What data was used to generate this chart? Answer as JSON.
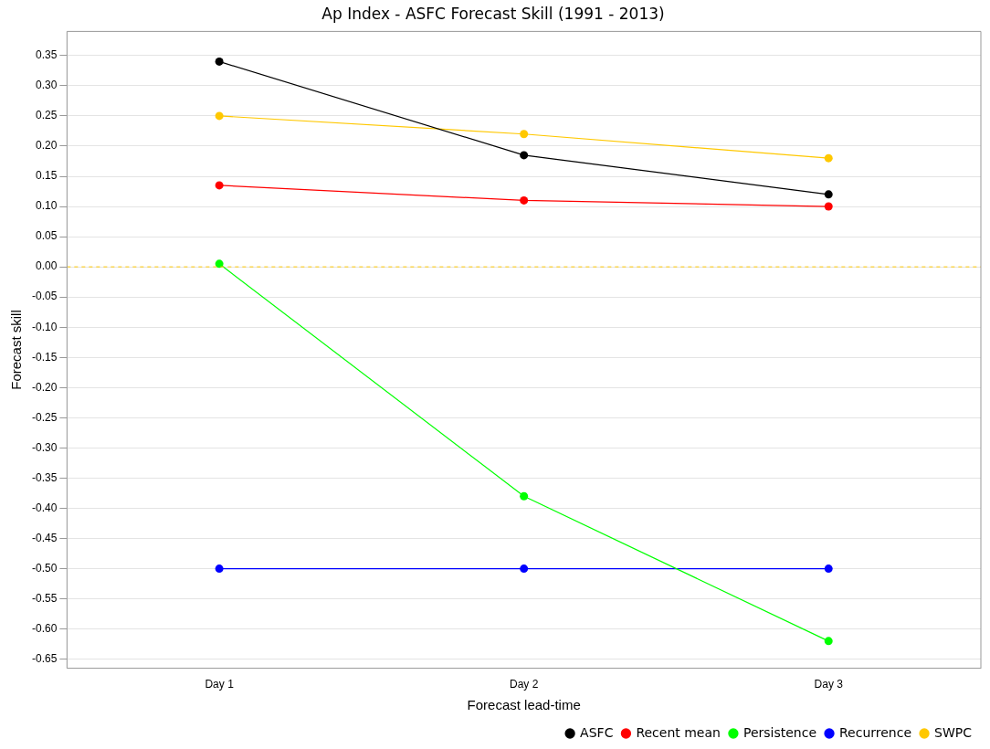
{
  "chart_data": {
    "type": "line",
    "title": "Ap Index - ASFC Forecast Skill (1991 - 2013)",
    "xlabel": "Forecast lead-time",
    "ylabel": "Forecast skill",
    "categories": [
      "Day 1",
      "Day 2",
      "Day 3"
    ],
    "series": [
      {
        "name": "ASFC",
        "color": "#000000",
        "values": [
          0.34,
          0.185,
          0.12
        ]
      },
      {
        "name": "Recent mean",
        "color": "#ff0000",
        "values": [
          0.135,
          0.11,
          0.1
        ]
      },
      {
        "name": "Persistence",
        "color": "#00ff00",
        "values": [
          0.005,
          -0.38,
          -0.62
        ]
      },
      {
        "name": "Recurrence",
        "color": "#0000ff",
        "values": [
          -0.5,
          -0.5,
          -0.5
        ]
      },
      {
        "name": "SWPC",
        "color": "#ffc800",
        "values": [
          0.25,
          0.22,
          0.18
        ]
      }
    ],
    "ylim": [
      -0.665,
      0.39
    ],
    "yticks": [
      {
        "value": 0.35,
        "label": "0.35"
      },
      {
        "value": 0.3,
        "label": "0.30"
      },
      {
        "value": 0.25,
        "label": "0.25"
      },
      {
        "value": 0.2,
        "label": "0.20"
      },
      {
        "value": 0.15,
        "label": "0.15"
      },
      {
        "value": 0.1,
        "label": "0.10"
      },
      {
        "value": 0.05,
        "label": "0.05"
      },
      {
        "value": 0,
        "label": "0.00"
      },
      {
        "value": -0.05,
        "label": "-0.05"
      },
      {
        "value": -0.1,
        "label": "-0.10"
      },
      {
        "value": -0.15,
        "label": "-0.15"
      },
      {
        "value": -0.2,
        "label": "-0.20"
      },
      {
        "value": -0.25,
        "label": "-0.25"
      },
      {
        "value": -0.3,
        "label": "-0.30"
      },
      {
        "value": -0.35,
        "label": "-0.35"
      },
      {
        "value": -0.4,
        "label": "-0.40"
      },
      {
        "value": -0.45,
        "label": "-0.45"
      },
      {
        "value": -0.5,
        "label": "-0.50"
      },
      {
        "value": -0.55,
        "label": "-0.55"
      },
      {
        "value": -0.6,
        "label": "-0.60"
      },
      {
        "value": -0.65,
        "label": "-0.65"
      }
    ],
    "ref_lines": [
      {
        "axis": "y",
        "value": 0,
        "color": "#ffc800",
        "line_style": "dashed"
      }
    ],
    "grid": "y",
    "legend": "bottom right",
    "marker": "circle",
    "line_style": "solid"
  }
}
